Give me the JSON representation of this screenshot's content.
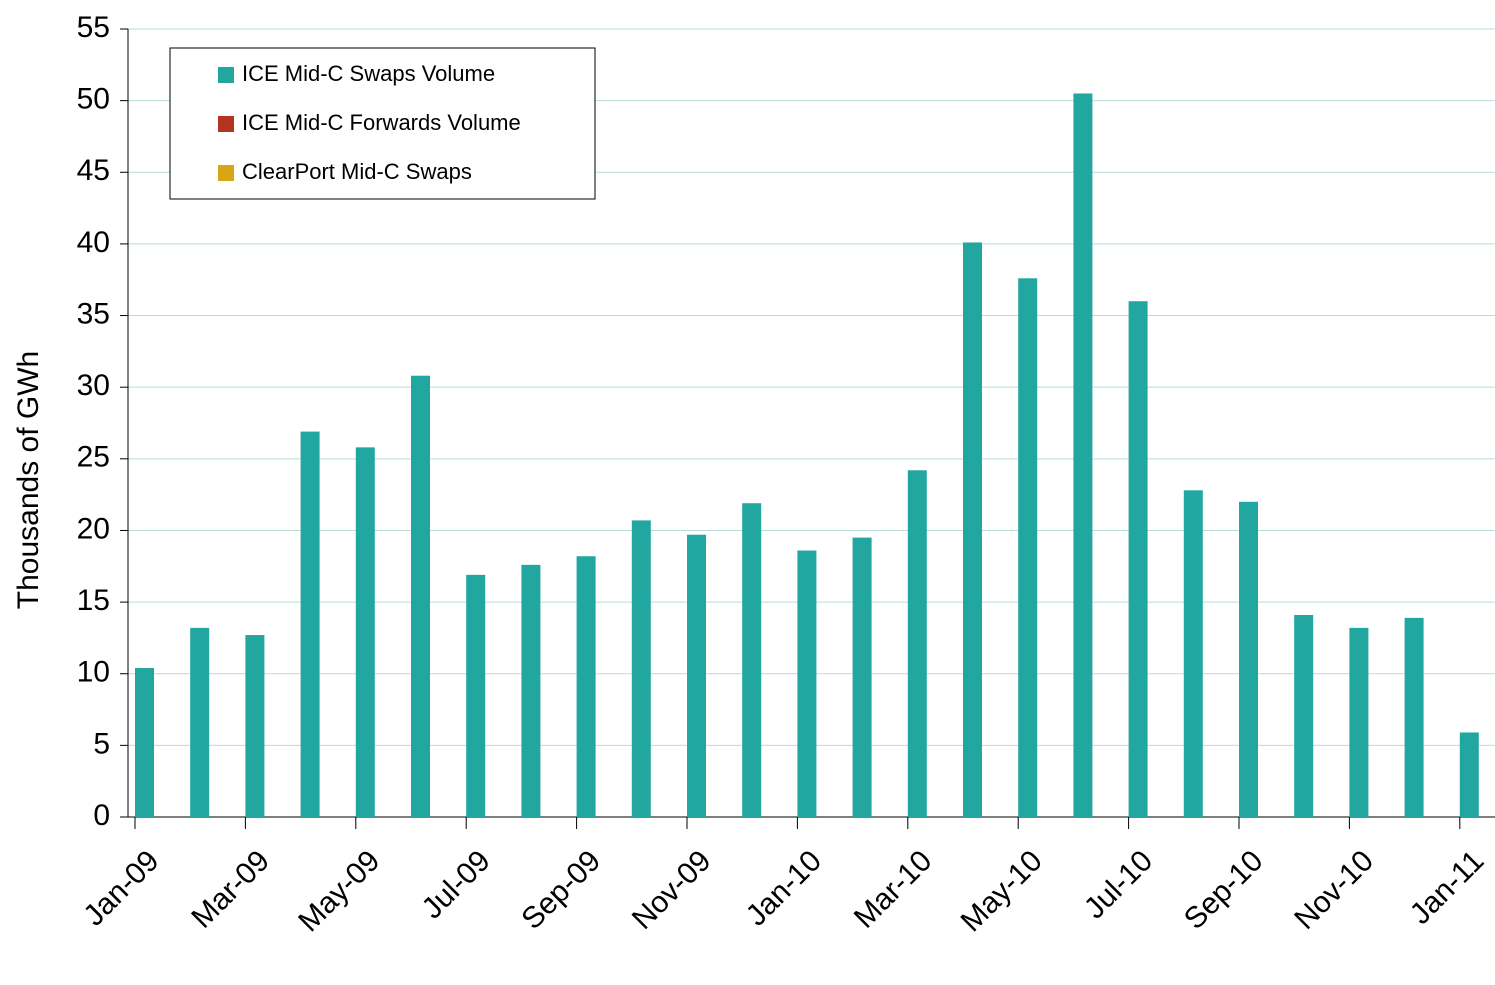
{
  "chart_data": {
    "type": "bar",
    "categories": [
      "Jan-09",
      null,
      "Mar-09",
      null,
      "May-09",
      null,
      "Jul-09",
      null,
      "Sep-09",
      null,
      "Nov-09",
      null,
      "Jan-10",
      null,
      "Mar-10",
      null,
      "May-10",
      null,
      "Jul-10",
      null,
      "Sep-10",
      null,
      "Nov-10",
      null,
      "Jan-11"
    ],
    "series": [
      {
        "name": "ICE Mid-C Swaps Volume",
        "color": "#22a6a0",
        "values": [
          10.4,
          13.2,
          12.7,
          26.9,
          25.8,
          30.8,
          16.9,
          17.6,
          18.2,
          20.7,
          19.7,
          21.9,
          18.6,
          19.5,
          24.2,
          40.1,
          37.6,
          50.5,
          36.0,
          22.8,
          22.0,
          14.1,
          13.2,
          13.9,
          5.9
        ]
      },
      {
        "name": "ICE Mid-C Forwards Volume",
        "color": "#b5341f",
        "values": [
          null,
          null,
          null,
          null,
          null,
          null,
          null,
          null,
          null,
          null,
          null,
          null,
          null,
          null,
          null,
          null,
          null,
          null,
          null,
          null,
          null,
          null,
          null,
          null,
          null
        ]
      },
      {
        "name": "ClearPort Mid-C Swaps",
        "color": "#d9a514",
        "values": [
          null,
          null,
          null,
          null,
          null,
          null,
          null,
          null,
          null,
          null,
          null,
          null,
          null,
          null,
          null,
          null,
          null,
          null,
          null,
          null,
          null,
          null,
          null,
          null,
          null
        ]
      }
    ],
    "y_label": "Thousands of GWh",
    "ylim": [
      0,
      55
    ],
    "yticks": [
      0,
      5,
      10,
      15,
      20,
      25,
      30,
      35,
      40,
      45,
      50,
      55
    ],
    "grid": true,
    "legend": "top-left"
  }
}
